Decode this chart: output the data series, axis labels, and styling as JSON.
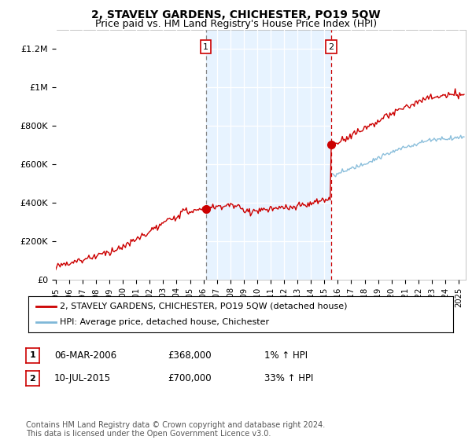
{
  "title": "2, STAVELY GARDENS, CHICHESTER, PO19 5QW",
  "subtitle": "Price paid vs. HM Land Registry's House Price Index (HPI)",
  "ylabel_ticks": [
    "£0",
    "£200K",
    "£400K",
    "£600K",
    "£800K",
    "£1M",
    "£1.2M"
  ],
  "ytick_values": [
    0,
    200000,
    400000,
    600000,
    800000,
    1000000,
    1200000
  ],
  "ylim": [
    0,
    1300000
  ],
  "xlim_start": 1995.0,
  "xlim_end": 2025.5,
  "sale1_date": 2006.17,
  "sale1_price": 368000,
  "sale2_date": 2015.52,
  "sale2_price": 700000,
  "hpi_line_color": "#7fb8d8",
  "price_line_color": "#cc0000",
  "vline1_color": "#aaaaaa",
  "vline2_color": "#cc0000",
  "shade_color": "#ddeeff",
  "background_color": "#ffffff",
  "fig_bg_color": "#ffffff",
  "legend_line1": "2, STAVELY GARDENS, CHICHESTER, PO19 5QW (detached house)",
  "legend_line2": "HPI: Average price, detached house, Chichester",
  "table_row1": [
    "1",
    "06-MAR-2006",
    "£368,000",
    "1% ↑ HPI"
  ],
  "table_row2": [
    "2",
    "10-JUL-2015",
    "£700,000",
    "33% ↑ HPI"
  ],
  "footer": "Contains HM Land Registry data © Crown copyright and database right 2024.\nThis data is licensed under the Open Government Licence v3.0.",
  "title_fontsize": 10,
  "subtitle_fontsize": 9,
  "axis_fontsize": 8,
  "legend_fontsize": 8,
  "table_fontsize": 8.5,
  "footer_fontsize": 7
}
